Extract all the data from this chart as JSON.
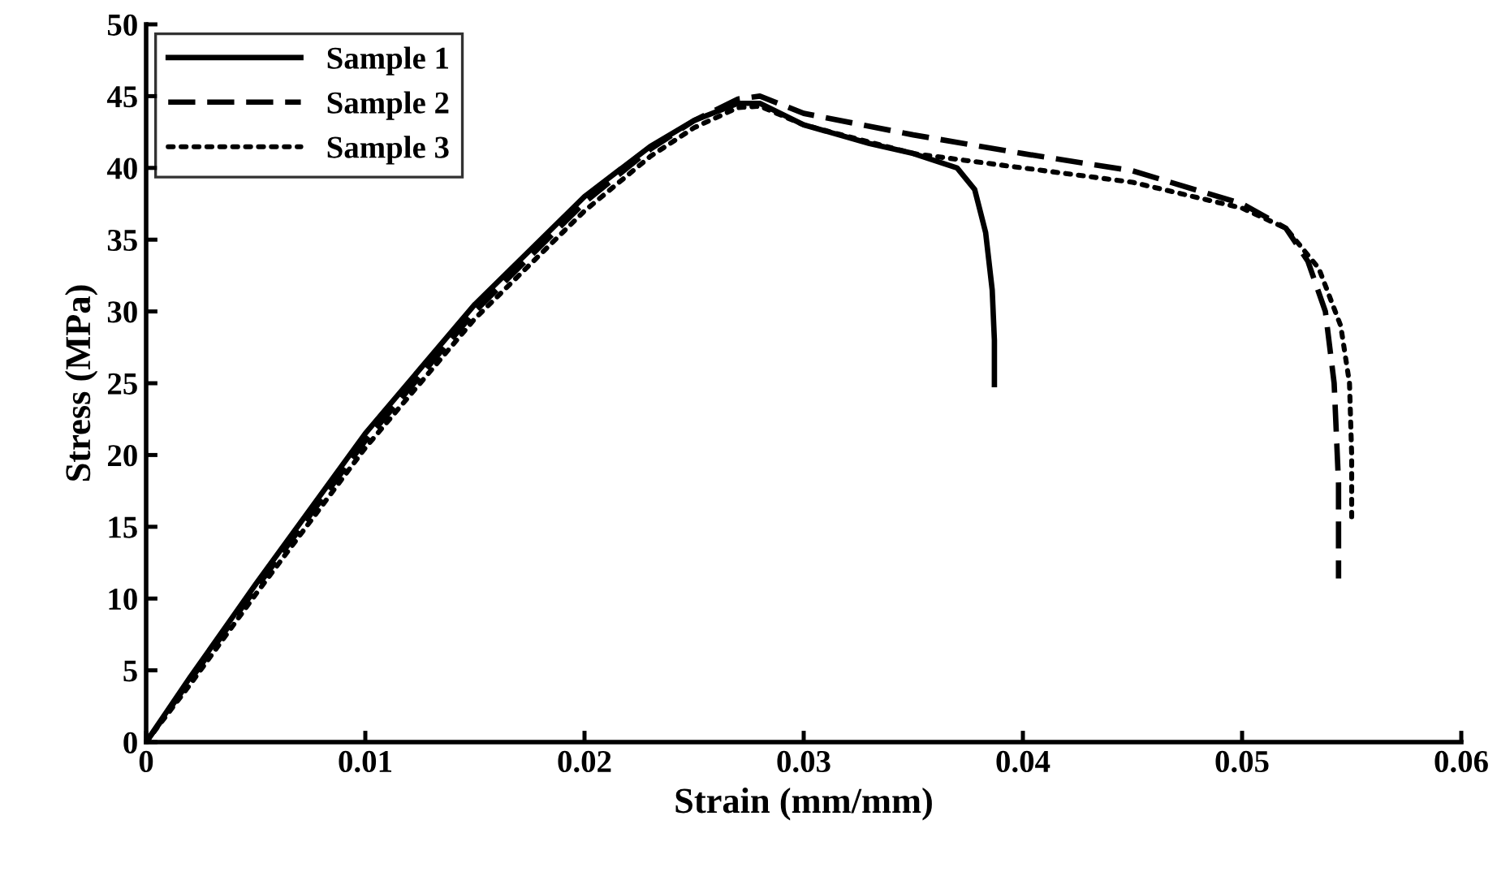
{
  "chart_data": {
    "type": "line",
    "xlabel": "Strain (mm/mm)",
    "ylabel": "Stress (MPa)",
    "xlim": [
      0,
      0.06
    ],
    "xticks": [
      {
        "value": 0,
        "label": "0"
      },
      0.01,
      0.02,
      0.03,
      0.04,
      0.05,
      0.06
    ],
    "ylim": [
      0,
      50
    ],
    "yticks": [
      0,
      5,
      10,
      15,
      20,
      25,
      30,
      35,
      40,
      45,
      50
    ],
    "grid": false,
    "legend": "top left",
    "marker": "none",
    "series": [
      {
        "name": "Sample 1",
        "color": "#000000",
        "line_style": "solid",
        "x": [
          0,
          0.002,
          0.005,
          0.01,
          0.015,
          0.02,
          0.023,
          0.025,
          0.027,
          0.028,
          0.03,
          0.033,
          0.035,
          0.037,
          0.0378,
          0.0383,
          0.0386,
          0.0387,
          0.0387
        ],
        "values": [
          0,
          4.5,
          11,
          21.5,
          30.5,
          38,
          41.5,
          43.3,
          44.5,
          44.5,
          43,
          41.7,
          41,
          40,
          38.5,
          35.5,
          31.5,
          28,
          24.9
        ]
      },
      {
        "name": "Sample 2",
        "color": "#000000",
        "line_style": "dashed",
        "x": [
          0,
          0.002,
          0.005,
          0.01,
          0.015,
          0.02,
          0.023,
          0.025,
          0.027,
          0.028,
          0.03,
          0.035,
          0.04,
          0.045,
          0.05,
          0.052,
          0.053,
          0.0538,
          0.0542,
          0.0544,
          0.0544
        ],
        "values": [
          0,
          4.3,
          10.7,
          21,
          30,
          37.6,
          41.3,
          43.3,
          44.8,
          45,
          43.8,
          42.3,
          41,
          39.8,
          37.5,
          35.8,
          33.5,
          30,
          25,
          18,
          11.4
        ]
      },
      {
        "name": "Sample 3",
        "color": "#000000",
        "line_style": "dotted",
        "x": [
          0,
          0.002,
          0.005,
          0.01,
          0.015,
          0.02,
          0.023,
          0.025,
          0.027,
          0.028,
          0.03,
          0.035,
          0.04,
          0.045,
          0.05,
          0.052,
          0.0535,
          0.0545,
          0.0549,
          0.055,
          0.055
        ],
        "values": [
          0,
          4,
          10.3,
          20.5,
          29.5,
          37,
          40.8,
          42.8,
          44.2,
          44.3,
          43,
          41,
          40,
          39,
          37.2,
          35.8,
          33,
          29,
          25,
          20,
          15.7
        ]
      }
    ]
  }
}
